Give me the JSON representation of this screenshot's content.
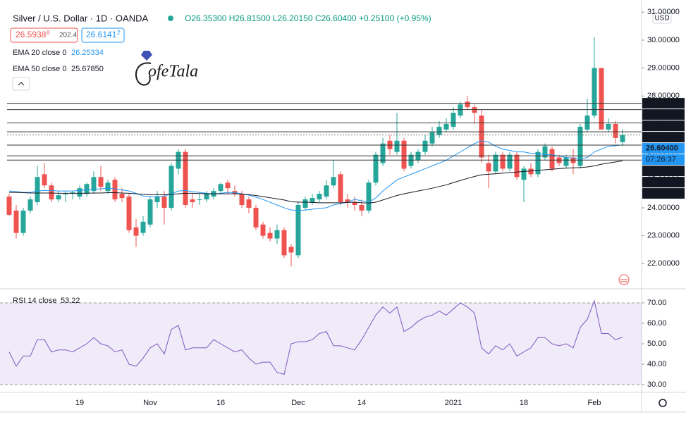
{
  "chart_data": [
    {
      "type": "candlestick",
      "title": "Silver / U.S. Dollar · 1D · OANDA",
      "ohlc_header": "O26.35300 H26.81500 L26.20150 C26.60400 +0.25100 (+0.95%)",
      "bid": "26.5938",
      "bid_small": "8",
      "spread": "202.4",
      "ask": "26.6141",
      "ask_small": "2",
      "watermark": "ofeTala",
      "currency": "USD",
      "up_color": "#26a69a",
      "down_color": "#ef5350",
      "categories": [
        null,
        null,
        null,
        null,
        null,
        null,
        null,
        null,
        null,
        null,
        "19",
        null,
        null,
        null,
        null,
        null,
        null,
        null,
        null,
        null,
        "Nov",
        null,
        null,
        null,
        null,
        null,
        null,
        null,
        null,
        null,
        "16",
        null,
        null,
        null,
        null,
        null,
        null,
        null,
        null,
        null,
        null,
        "Dec",
        null,
        null,
        null,
        null,
        null,
        null,
        null,
        null,
        "14",
        null,
        null,
        null,
        null,
        null,
        null,
        null,
        null,
        null,
        null,
        null,
        null,
        "2021",
        null,
        null,
        null,
        null,
        null,
        null,
        null,
        null,
        null,
        "18",
        null,
        null,
        null,
        null,
        null,
        null,
        null,
        null,
        null,
        "Feb",
        null,
        null,
        null,
        null
      ],
      "open": [
        24.4,
        23.9,
        23.1,
        23.9,
        24.2,
        25.2,
        24.8,
        24.3,
        24.5,
        24.5,
        24.4,
        24.5,
        24.6,
        25.1,
        24.6,
        25.0,
        24.5,
        24.4,
        23.3,
        23.1,
        23.4,
        24.2,
        24.4,
        24.0,
        25.4,
        26.0,
        24.3,
        24.3,
        24.3,
        24.4,
        24.6,
        24.9,
        24.6,
        24.5,
        24.3,
        24.0,
        23.4,
        23.1,
        22.9,
        23.2,
        22.6,
        22.3,
        24.0,
        24.2,
        24.3,
        24.4,
        24.8,
        25.2,
        24.3,
        24.2,
        24.1,
        23.9,
        24.9,
        25.6,
        26.4,
        26.0,
        26.4,
        25.5,
        25.7,
        26.0,
        26.3,
        26.6,
        26.8,
        26.9,
        27.3,
        27.8,
        27.6,
        27.3,
        25.6,
        25.3,
        25.9,
        25.4,
        25.9,
        25.0,
        25.4,
        25.2,
        25.8,
        26.1,
        25.8,
        25.5,
        25.8,
        25.5,
        26.8,
        27.3,
        29.0,
        26.8,
        27.0,
        26.35
      ],
      "high": [
        24.5,
        24.1,
        24.0,
        24.4,
        25.5,
        25.6,
        24.9,
        24.6,
        24.6,
        24.6,
        24.8,
        24.9,
        25.3,
        25.5,
        25.0,
        25.1,
        24.7,
        24.5,
        23.6,
        23.7,
        24.4,
        24.6,
        24.6,
        25.6,
        26.1,
        26.1,
        24.5,
        24.5,
        24.6,
        24.7,
        24.9,
        25.0,
        24.8,
        24.6,
        24.4,
        24.1,
        23.5,
        23.3,
        23.4,
        23.3,
        22.7,
        24.2,
        24.4,
        24.5,
        24.6,
        25.0,
        25.7,
        25.3,
        24.5,
        24.4,
        24.3,
        25.0,
        26.0,
        26.5,
        26.6,
        27.4,
        26.5,
        26.0,
        26.1,
        26.6,
        26.9,
        27.1,
        27.2,
        27.6,
        27.8,
        28.0,
        27.7,
        27.5,
        25.9,
        26.0,
        26.0,
        26.0,
        26.0,
        25.5,
        25.6,
        26.1,
        26.3,
        26.2,
        25.9,
        25.9,
        26.1,
        27.0,
        27.9,
        30.1,
        29.0,
        27.2,
        27.1,
        26.815
      ],
      "low": [
        23.7,
        22.9,
        23.0,
        23.8,
        24.1,
        24.7,
        24.2,
        24.2,
        24.2,
        24.3,
        24.3,
        24.4,
        24.5,
        24.6,
        24.5,
        24.2,
        24.2,
        23.1,
        22.6,
        23.0,
        23.3,
        24.0,
        23.4,
        23.9,
        25.2,
        24.0,
        24.0,
        24.1,
        24.2,
        24.3,
        24.5,
        24.5,
        24.4,
        24.0,
        23.8,
        23.2,
        22.9,
        22.8,
        22.7,
        22.2,
        21.9,
        22.2,
        23.9,
        24.1,
        24.2,
        24.3,
        24.7,
        24.1,
        24.0,
        23.9,
        23.7,
        23.8,
        24.8,
        25.5,
        25.9,
        25.9,
        25.3,
        25.4,
        25.6,
        25.9,
        26.2,
        26.5,
        26.7,
        26.8,
        27.2,
        27.5,
        27.0,
        25.6,
        24.7,
        25.2,
        25.3,
        25.3,
        25.0,
        24.2,
        25.1,
        25.1,
        25.7,
        25.3,
        25.5,
        25.4,
        25.2,
        25.4,
        26.7,
        27.2,
        26.8,
        26.7,
        26.3,
        26.2015
      ],
      "close": [
        23.75,
        23.1,
        23.9,
        24.3,
        25.1,
        24.8,
        24.3,
        24.45,
        24.5,
        24.55,
        24.7,
        24.85,
        25.1,
        24.75,
        24.9,
        24.3,
        24.35,
        23.2,
        23.0,
        23.5,
        24.3,
        24.4,
        24.0,
        25.5,
        26.0,
        24.1,
        24.2,
        24.3,
        24.5,
        24.6,
        24.85,
        24.7,
        24.5,
        24.1,
        24.0,
        23.3,
        23.0,
        22.9,
        23.2,
        22.3,
        22.4,
        24.1,
        24.3,
        24.35,
        24.5,
        24.8,
        25.1,
        24.2,
        24.2,
        24.1,
        23.9,
        24.9,
        25.9,
        26.3,
        26.1,
        26.4,
        25.4,
        25.9,
        26.0,
        26.4,
        26.7,
        26.9,
        27.0,
        27.4,
        27.7,
        27.6,
        27.4,
        25.8,
        25.3,
        25.9,
        25.4,
        25.9,
        25.1,
        25.4,
        25.2,
        26.0,
        26.2,
        25.4,
        25.6,
        25.8,
        25.6,
        26.9,
        27.3,
        29.0,
        26.8,
        27.0,
        26.5,
        26.604
      ],
      "series": [
        {
          "name": "EMA 20 close 0",
          "last_value": "26.25334",
          "color": "#2196f3",
          "values": [
            24.6,
            24.58,
            24.55,
            24.55,
            24.6,
            24.62,
            24.62,
            24.6,
            24.6,
            24.6,
            24.62,
            24.64,
            24.66,
            24.68,
            24.7,
            24.68,
            24.64,
            24.6,
            24.52,
            24.42,
            24.4,
            24.4,
            24.42,
            24.5,
            24.6,
            24.62,
            24.58,
            24.55,
            24.52,
            24.5,
            24.52,
            24.55,
            24.54,
            24.5,
            24.45,
            24.38,
            24.3,
            24.2,
            24.1,
            24.0,
            23.92,
            23.9,
            23.92,
            23.95,
            23.98,
            24.0,
            24.1,
            24.15,
            24.2,
            24.3,
            24.25,
            24.2,
            24.35,
            24.6,
            24.8,
            25.0,
            25.1,
            25.2,
            25.3,
            25.4,
            25.5,
            25.6,
            25.7,
            25.85,
            26.0,
            26.15,
            26.3,
            26.4,
            26.35,
            26.2,
            26.1,
            26.05,
            26.0,
            26.0,
            25.95,
            25.95,
            25.9,
            25.9,
            25.85,
            25.8,
            25.78,
            25.75,
            25.8,
            26.0,
            26.1,
            26.2,
            26.22,
            26.25334
          ]
        },
        {
          "name": "EMA 50 close 0",
          "last_value": "25.67850",
          "color": "#131722",
          "values": [
            24.55,
            24.55,
            24.54,
            24.53,
            24.53,
            24.53,
            24.53,
            24.52,
            24.52,
            24.52,
            24.52,
            24.52,
            24.53,
            24.53,
            24.54,
            24.54,
            24.53,
            24.52,
            24.5,
            24.48,
            24.47,
            24.47,
            24.47,
            24.48,
            24.5,
            24.52,
            24.52,
            24.51,
            24.5,
            24.5,
            24.5,
            24.5,
            24.5,
            24.49,
            24.47,
            24.44,
            24.4,
            24.36,
            24.32,
            24.28,
            24.22,
            24.2,
            24.2,
            24.19,
            24.18,
            24.18,
            24.18,
            24.18,
            24.19,
            24.2,
            24.18,
            24.17,
            24.2,
            24.28,
            24.36,
            24.44,
            24.5,
            24.55,
            24.6,
            24.65,
            24.7,
            24.76,
            24.82,
            24.9,
            24.98,
            25.05,
            25.12,
            25.18,
            25.2,
            25.22,
            25.24,
            25.26,
            25.28,
            25.3,
            25.32,
            25.34,
            25.36,
            25.38,
            25.4,
            25.42,
            25.43,
            25.44,
            25.46,
            25.5,
            25.56,
            25.6,
            25.64,
            25.6785
          ]
        }
      ],
      "ylim": [
        21.1,
        31.436
      ],
      "yticks": [
        {
          "value": 22,
          "label": "22.00000"
        },
        {
          "value": 23,
          "label": "23.00000"
        },
        {
          "value": 24,
          "label": "24.00000"
        },
        {
          "value": 25,
          "label": "25.00000"
        },
        {
          "value": 26,
          "label": "26.00000"
        },
        {
          "value": 27,
          "label": "27.00000"
        },
        {
          "value": 28,
          "label": "28.00000"
        },
        {
          "value": 29,
          "label": "29.00000"
        },
        {
          "value": 30,
          "label": "30.00000"
        },
        {
          "value": 31,
          "label": "31.00000"
        }
      ],
      "levels": [
        {
          "value": 27.74083,
          "label": "27.74083"
        },
        {
          "value": 27.51396,
          "label": "27.51396"
        },
        {
          "value": 27.03755,
          "label": "27.03755"
        },
        {
          "value": 26.71994,
          "label": "26.71994"
        },
        {
          "value": 26.24353,
          "label": "26.24353"
        },
        {
          "value": 25.85786,
          "label": "25.85786"
        },
        {
          "value": 25.70626,
          "label": "25.70626"
        }
      ],
      "current": {
        "value": 26.604,
        "label": "26.60400",
        "color": "#2196f3"
      },
      "countdown": "07:26:37"
    },
    {
      "type": "line",
      "title": "RSI 14 close",
      "color": "#7e57c2",
      "values": [
        46,
        39,
        44,
        44,
        52,
        52,
        46,
        47,
        47,
        46,
        48,
        50,
        53,
        50,
        49,
        46,
        47,
        40,
        39,
        43,
        48,
        50,
        45,
        57,
        59,
        47,
        48,
        48,
        48,
        52,
        50,
        48,
        46,
        47,
        43,
        40,
        41,
        41,
        36,
        35,
        50,
        51,
        51,
        52,
        55,
        56,
        49,
        49,
        48,
        47,
        52,
        58,
        64,
        68,
        65,
        68,
        56,
        58,
        61,
        63,
        64,
        66,
        64,
        67,
        70,
        68,
        65,
        48,
        45,
        49,
        47,
        50,
        44,
        46,
        48,
        53,
        53,
        50,
        49,
        50,
        48,
        58,
        62,
        71,
        55,
        55,
        52,
        53.22
      ],
      "band": [
        30,
        70
      ],
      "ylim": [
        26.9,
        76.2
      ],
      "yticks": [
        {
          "value": 30,
          "label": "30.00"
        },
        {
          "value": 40,
          "label": "40.00"
        },
        {
          "value": 50,
          "label": "50.00"
        },
        {
          "value": 60,
          "label": "60.00"
        },
        {
          "value": 70,
          "label": "70.00"
        }
      ]
    }
  ]
}
